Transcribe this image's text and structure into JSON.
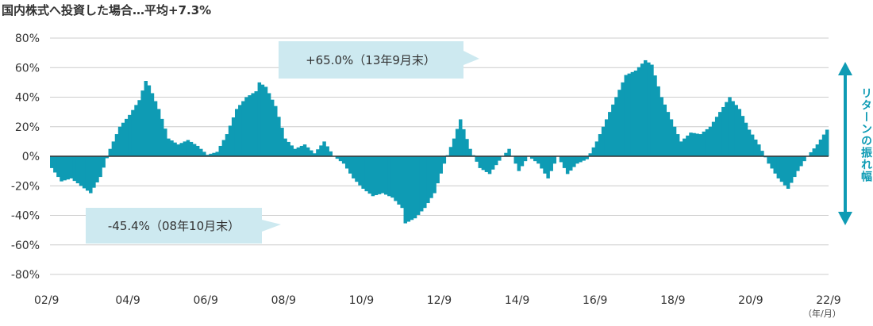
{
  "title": "国内株式へ投資した場合…平均+7.3%",
  "unit_label": "（年/月）",
  "range_label": "リターンの振れ幅",
  "colors": {
    "bar": "#0e9bb4",
    "callout_bg": "#cde9f0",
    "arrow": "#0e9bb4",
    "grid": "#cccccc",
    "axis": "#333333"
  },
  "chart_data": {
    "type": "bar",
    "title": "国内株式へ投資した場合…平均+7.3%",
    "xlabel": "（年/月）",
    "ylabel": "",
    "ylim": [
      -80,
      80
    ],
    "yticks": [
      80,
      60,
      40,
      20,
      0,
      -20,
      -40,
      -60,
      -80
    ],
    "ytick_labels": [
      "80%",
      "60%",
      "40%",
      "20%",
      "0%",
      "-20%",
      "-40%",
      "-60%",
      "-80%"
    ],
    "grid": true,
    "x_start": "2002-09",
    "x_end": "2022-09",
    "xtick_labels": [
      "02/9",
      "04/9",
      "06/9",
      "08/9",
      "10/9",
      "12/9",
      "14/9",
      "16/9",
      "18/9",
      "20/9",
      "22/9"
    ],
    "anchors": [
      [
        0,
        -8
      ],
      [
        3,
        -17
      ],
      [
        6,
        -15
      ],
      [
        9,
        -20
      ],
      [
        12,
        -25
      ],
      [
        15,
        -14
      ],
      [
        18,
        5
      ],
      [
        21,
        20
      ],
      [
        24,
        28
      ],
      [
        27,
        38
      ],
      [
        29,
        51
      ],
      [
        30,
        48
      ],
      [
        33,
        32
      ],
      [
        36,
        12
      ],
      [
        39,
        8
      ],
      [
        42,
        11
      ],
      [
        45,
        7
      ],
      [
        48,
        1
      ],
      [
        51,
        3
      ],
      [
        54,
        15
      ],
      [
        57,
        32
      ],
      [
        60,
        40
      ],
      [
        63,
        44
      ],
      [
        64,
        50
      ],
      [
        66,
        47
      ],
      [
        69,
        34
      ],
      [
        72,
        12
      ],
      [
        75,
        5
      ],
      [
        78,
        8
      ],
      [
        81,
        2
      ],
      [
        84,
        10
      ],
      [
        87,
        0
      ],
      [
        90,
        -5
      ],
      [
        93,
        -15
      ],
      [
        96,
        -22
      ],
      [
        99,
        -27
      ],
      [
        102,
        -25
      ],
      [
        105,
        -28
      ],
      [
        108,
        -35
      ],
      [
        109,
        -45.4
      ],
      [
        112,
        -42
      ],
      [
        115,
        -35
      ],
      [
        118,
        -25
      ],
      [
        121,
        -5
      ],
      [
        124,
        12
      ],
      [
        126,
        25
      ],
      [
        129,
        5
      ],
      [
        132,
        -8
      ],
      [
        135,
        -12
      ],
      [
        138,
        -3
      ],
      [
        141,
        5
      ],
      [
        144,
        -10
      ],
      [
        147,
        0
      ],
      [
        150,
        -5
      ],
      [
        153,
        -15
      ],
      [
        156,
        0
      ],
      [
        159,
        -12
      ],
      [
        162,
        -5
      ],
      [
        165,
        -2
      ],
      [
        168,
        10
      ],
      [
        171,
        25
      ],
      [
        174,
        40
      ],
      [
        177,
        55
      ],
      [
        180,
        58
      ],
      [
        183,
        65
      ],
      [
        185,
        62
      ],
      [
        188,
        40
      ],
      [
        191,
        25
      ],
      [
        194,
        10
      ],
      [
        197,
        16
      ],
      [
        200,
        15
      ],
      [
        203,
        20
      ],
      [
        206,
        30
      ],
      [
        209,
        40
      ],
      [
        212,
        32
      ],
      [
        215,
        18
      ],
      [
        218,
        8
      ],
      [
        221,
        -5
      ],
      [
        224,
        -15
      ],
      [
        227,
        -22
      ],
      [
        230,
        -10
      ],
      [
        233,
        0
      ],
      [
        236,
        8
      ],
      [
        239,
        18
      ],
      [
        242,
        25
      ],
      [
        245,
        27
      ],
      [
        248,
        23
      ],
      [
        251,
        20
      ],
      [
        254,
        14
      ],
      [
        257,
        10
      ],
      [
        260,
        8
      ],
      [
        263,
        -5
      ],
      [
        266,
        -15
      ],
      [
        269,
        -10
      ],
      [
        272,
        -8
      ],
      [
        275,
        -5
      ],
      [
        278,
        5
      ],
      [
        281,
        15
      ],
      [
        284,
        -3
      ],
      [
        287,
        -5
      ],
      [
        290,
        5
      ],
      [
        293,
        3
      ],
      [
        296,
        8
      ],
      [
        299,
        35
      ],
      [
        302,
        30
      ],
      [
        305,
        28
      ],
      [
        308,
        20
      ],
      [
        311,
        5
      ],
      [
        314,
        3
      ],
      [
        317,
        2
      ],
      [
        320,
        4
      ],
      [
        323,
        0
      ],
      [
        324,
        -7
      ]
    ]
  },
  "callouts": [
    {
      "text": "+65.0%（13年9月末）"
    },
    {
      "text": "-45.4%（08年10月末）"
    }
  ]
}
